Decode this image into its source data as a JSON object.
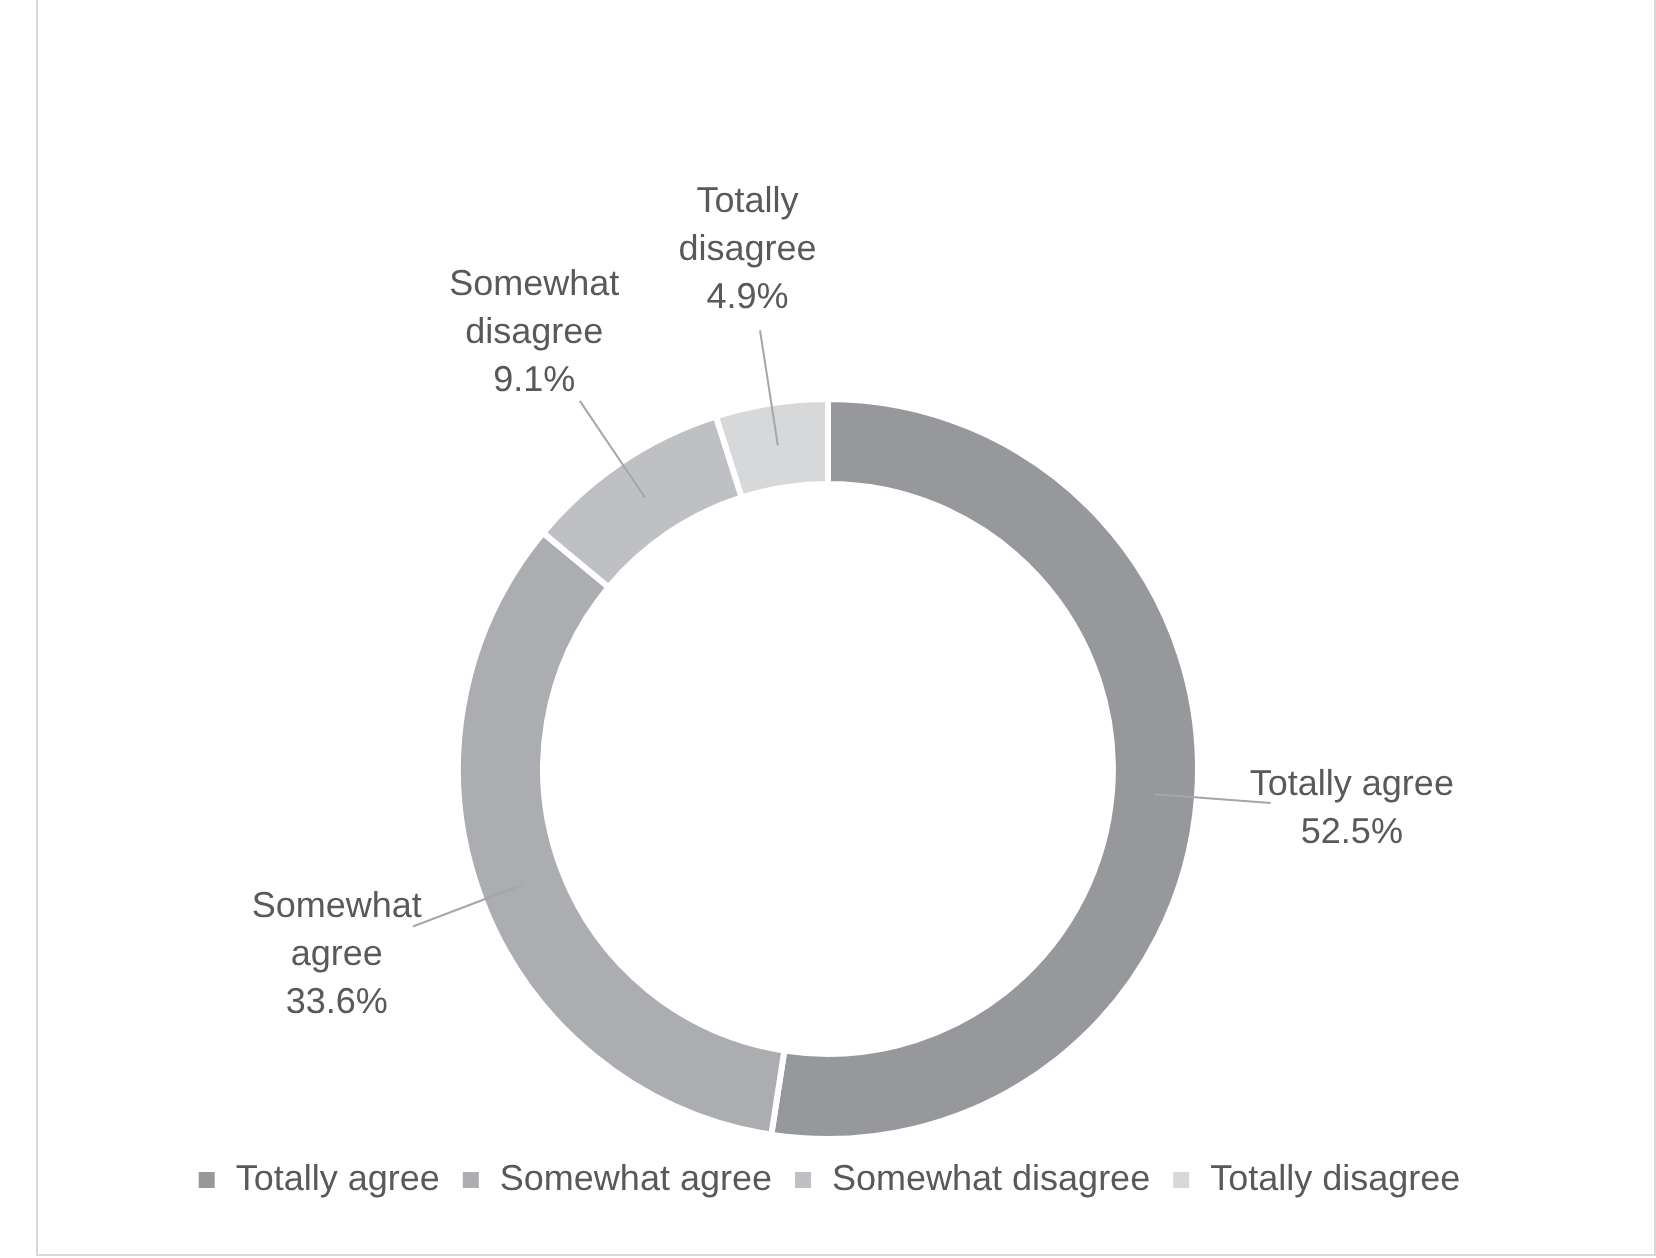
{
  "chart_data": {
    "type": "donut",
    "categories": [
      "Totally agree",
      "Somewhat agree",
      "Somewhat disagree",
      "Totally disagree"
    ],
    "values": [
      52.5,
      33.6,
      9.1,
      4.9
    ],
    "colors": [
      "#97989b",
      "#acadb0",
      "#bfc0c3",
      "#d7d8da"
    ],
    "value_labels": [
      "52.5%",
      "33.6%",
      "9.1%",
      "4.9%"
    ],
    "legend": "bottom"
  }
}
